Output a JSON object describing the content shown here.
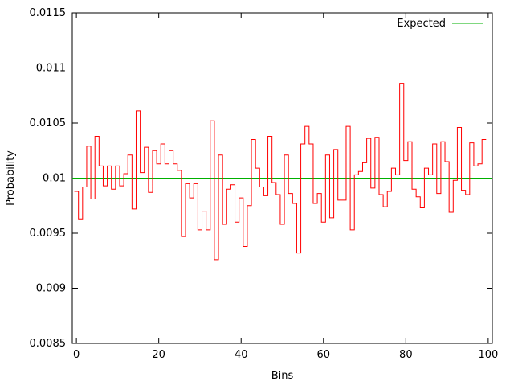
{
  "figure": {
    "background": "#ffffff",
    "axis_color": "#000000",
    "text_color": "#000000"
  },
  "chart_data": {
    "type": "line",
    "style": "histeps-step-histogram",
    "title": "",
    "xlabel": "Bins",
    "ylabel": "Probability",
    "xlim": [
      -1,
      101
    ],
    "ylim": [
      0.0085,
      0.0115
    ],
    "grid": false,
    "legend_position": "top-right-inside",
    "xticks": [
      0,
      20,
      40,
      60,
      80,
      100
    ],
    "yticks": [
      0.0085,
      0.009,
      0.0095,
      0.01,
      0.0105,
      0.011,
      0.0115
    ],
    "ytick_labels": [
      "0.0085",
      "0.009",
      "0.0095",
      "0.01",
      "0.0105",
      "0.011",
      "0.0115"
    ],
    "legend": {
      "label": "Expected",
      "color": "#00b000"
    },
    "expected_line": {
      "name": "Expected",
      "color": "#00b000",
      "y": 0.01
    },
    "histogram": {
      "name": "bin-probabilities",
      "color": "#ff0000",
      "bin_start": 0,
      "bin_width": 1,
      "values": [
        0.00988,
        0.00963,
        0.00992,
        0.01029,
        0.00981,
        0.01038,
        0.01011,
        0.00993,
        0.01011,
        0.0099,
        0.01011,
        0.00993,
        0.01004,
        0.01021,
        0.00972,
        0.01061,
        0.01005,
        0.01028,
        0.00987,
        0.01025,
        0.01013,
        0.01031,
        0.01013,
        0.01025,
        0.01013,
        0.01007,
        0.00947,
        0.00995,
        0.00982,
        0.00995,
        0.00953,
        0.0097,
        0.00953,
        0.01052,
        0.00926,
        0.01021,
        0.00958,
        0.0099,
        0.00994,
        0.0096,
        0.00982,
        0.00938,
        0.00975,
        0.01035,
        0.01009,
        0.00992,
        0.00984,
        0.01038,
        0.00996,
        0.00985,
        0.00958,
        0.01021,
        0.00986,
        0.00977,
        0.00932,
        0.01031,
        0.01047,
        0.01031,
        0.00977,
        0.00986,
        0.0096,
        0.01021,
        0.00964,
        0.01026,
        0.0098,
        0.0098,
        0.01047,
        0.00953,
        0.01003,
        0.01006,
        0.01014,
        0.01036,
        0.00991,
        0.01037,
        0.00985,
        0.00974,
        0.00988,
        0.01009,
        0.01003,
        0.01086,
        0.01016,
        0.01033,
        0.0099,
        0.00983,
        0.00973,
        0.01009,
        0.01003,
        0.01031,
        0.00986,
        0.01033,
        0.01015,
        0.00969,
        0.00998,
        0.01046,
        0.00989,
        0.00985,
        0.01032,
        0.01011,
        0.01013,
        0.01035
      ]
    }
  }
}
